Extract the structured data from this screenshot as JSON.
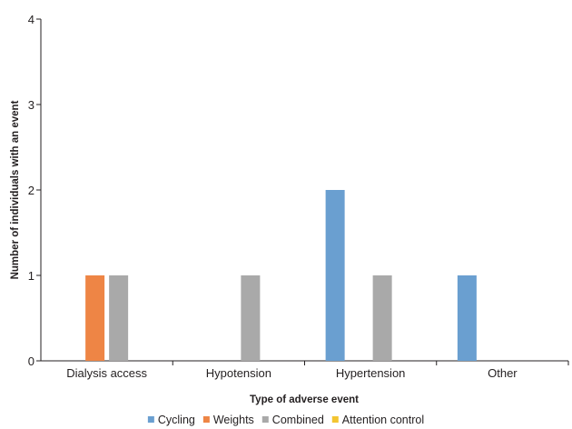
{
  "chart_data": {
    "type": "bar",
    "title": "",
    "xlabel": "Type of adverse event",
    "ylabel": "Number of individuals with an event",
    "ylim": [
      0,
      4
    ],
    "yticks": [
      "0",
      "1",
      "2",
      "3",
      "4"
    ],
    "categories": [
      "Dialysis access",
      "Hypotension",
      "Hypertension",
      "Other"
    ],
    "series": [
      {
        "name": "Cycling",
        "color": "#6a9fd0",
        "values": [
          0,
          0,
          2,
          1
        ]
      },
      {
        "name": "Weights",
        "color": "#ee8545",
        "values": [
          1,
          0,
          0,
          0
        ]
      },
      {
        "name": "Combined",
        "color": "#a9a9a9",
        "values": [
          1,
          1,
          1,
          0
        ]
      },
      {
        "name": "Attention control",
        "color": "#f3c531",
        "values": [
          0,
          0,
          0,
          0
        ]
      }
    ],
    "grid": false,
    "legend_position": "bottom"
  }
}
